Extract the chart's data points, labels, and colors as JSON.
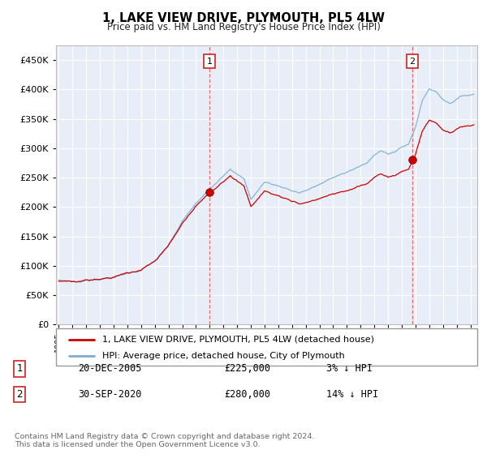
{
  "title": "1, LAKE VIEW DRIVE, PLYMOUTH, PL5 4LW",
  "subtitle": "Price paid vs. HM Land Registry's House Price Index (HPI)",
  "ylabel_ticks": [
    "£0",
    "£50K",
    "£100K",
    "£150K",
    "£200K",
    "£250K",
    "£300K",
    "£350K",
    "£400K",
    "£450K"
  ],
  "ytick_values": [
    0,
    50000,
    100000,
    150000,
    200000,
    250000,
    300000,
    350000,
    400000,
    450000
  ],
  "ylim": [
    0,
    475000
  ],
  "xlim_start": 1994.8,
  "xlim_end": 2025.5,
  "plot_bg": "#e8eef8",
  "grid_color": "#ffffff",
  "line_color_red": "#cc0000",
  "line_color_blue": "#7aadd4",
  "sale1_x": 2005.97,
  "sale1_y": 225000,
  "sale2_x": 2020.75,
  "sale2_y": 280000,
  "legend_label1": "1, LAKE VIEW DRIVE, PLYMOUTH, PL5 4LW (detached house)",
  "legend_label2": "HPI: Average price, detached house, City of Plymouth",
  "annotation1_label": "1",
  "annotation1_date": "20-DEC-2005",
  "annotation1_price": "£225,000",
  "annotation1_hpi": "3% ↓ HPI",
  "annotation2_label": "2",
  "annotation2_date": "30-SEP-2020",
  "annotation2_price": "£280,000",
  "annotation2_hpi": "14% ↓ HPI",
  "footer": "Contains HM Land Registry data © Crown copyright and database right 2024.\nThis data is licensed under the Open Government Licence v3.0."
}
